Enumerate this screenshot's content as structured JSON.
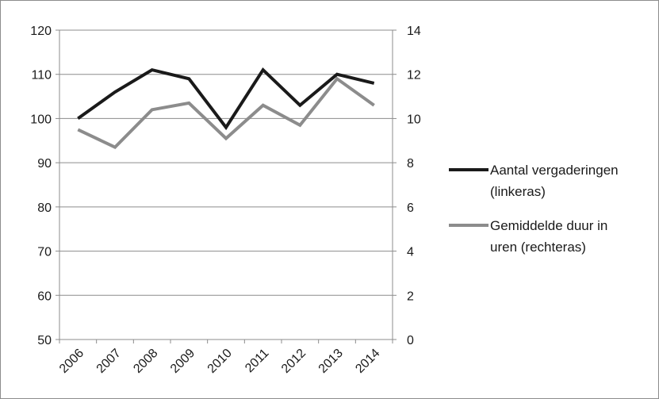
{
  "chart_data": {
    "type": "line",
    "categories": [
      "2006",
      "2007",
      "2008",
      "2009",
      "2010",
      "2011",
      "2012",
      "2013",
      "2014"
    ],
    "series": [
      {
        "name": "Aantal vergaderingen (linkeras)",
        "legend_lines": [
          "Aantal vergaderingen",
          "(linkeras)"
        ],
        "axis": "left",
        "color": "#1a1a1a",
        "values": [
          100,
          106,
          111,
          109,
          98,
          111,
          103,
          110,
          108
        ]
      },
      {
        "name": "Gemiddelde duur in uren (rechteras)",
        "legend_lines": [
          "Gemiddelde duur in",
          "uren (rechteras)"
        ],
        "axis": "right",
        "color": "#8c8c8c",
        "values": [
          9.5,
          8.7,
          10.4,
          10.7,
          9.1,
          10.6,
          9.7,
          11.8,
          10.6
        ]
      }
    ],
    "left_axis": {
      "ylim": [
        50,
        120
      ],
      "ticks": [
        "50",
        "60",
        "70",
        "80",
        "90",
        "100",
        "110",
        "120"
      ]
    },
    "right_axis": {
      "ylim": [
        0,
        14
      ],
      "ticks": [
        "0",
        "2",
        "4",
        "6",
        "8",
        "10",
        "12",
        "14"
      ]
    },
    "title": "",
    "xlabel": "",
    "ylabel": "",
    "grid": true,
    "legend_position": "right"
  }
}
